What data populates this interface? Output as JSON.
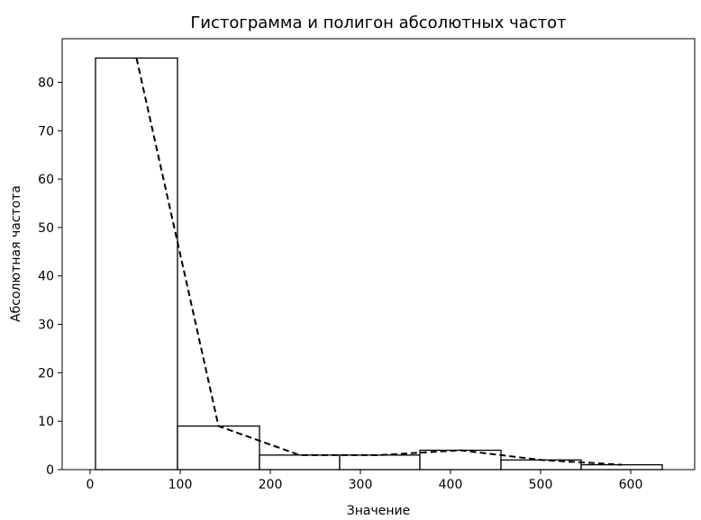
{
  "chart_data": {
    "type": "bar",
    "title": "Гистограмма и полигон абсолютных частот",
    "xlabel": "Значение",
    "ylabel": "Абсолютная частота",
    "bins": [
      {
        "start": 6,
        "end": 97,
        "count": 85
      },
      {
        "start": 97,
        "end": 188,
        "count": 9
      },
      {
        "start": 188,
        "end": 277,
        "count": 3
      },
      {
        "start": 277,
        "end": 366,
        "count": 3
      },
      {
        "start": 366,
        "end": 456,
        "count": 4
      },
      {
        "start": 456,
        "end": 545,
        "count": 2
      },
      {
        "start": 545,
        "end": 635,
        "count": 1
      }
    ],
    "polygon": {
      "x": [
        51.5,
        142.5,
        232.5,
        321.5,
        411,
        500.5,
        590
      ],
      "y": [
        85,
        9,
        3,
        3,
        4,
        2,
        1
      ],
      "style": "dashed"
    },
    "xlim": [
      -31,
      671
    ],
    "ylim": [
      0,
      89
    ],
    "xticks": [
      0,
      100,
      200,
      300,
      400,
      500,
      600
    ],
    "yticks": [
      0,
      10,
      20,
      30,
      40,
      50,
      60,
      70,
      80
    ],
    "grid": false,
    "bar_fill": "#ffffff",
    "bar_edge": "#000000",
    "line_color": "#000000"
  }
}
